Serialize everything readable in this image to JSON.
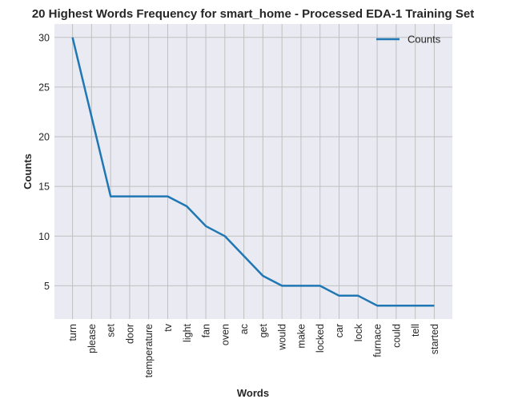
{
  "chart_data": {
    "type": "line",
    "title": "20 Highest Words Frequency for smart_home - Processed EDA-1 Training Set",
    "xlabel": "Words",
    "ylabel": "Counts",
    "categories": [
      "turn",
      "please",
      "set",
      "door",
      "temperature",
      "tv",
      "light",
      "fan",
      "oven",
      "ac",
      "get",
      "would",
      "make",
      "locked",
      "car",
      "lock",
      "furnace",
      "could",
      "tell",
      "started"
    ],
    "series": [
      {
        "name": "Counts",
        "values": [
          30,
          22,
          14,
          14,
          14,
          14,
          13,
          11,
          10,
          8,
          6,
          5,
          5,
          5,
          4,
          4,
          3,
          3,
          3,
          3
        ]
      }
    ],
    "ylim": [
      1.65,
      31.35
    ],
    "yticks": [
      5,
      10,
      15,
      20,
      25,
      30
    ],
    "grid": true,
    "legend_position": "top-right",
    "colors": {
      "line": "#1f77b4",
      "background": "#eaeaf2",
      "grid": "#c0c0c0"
    }
  }
}
